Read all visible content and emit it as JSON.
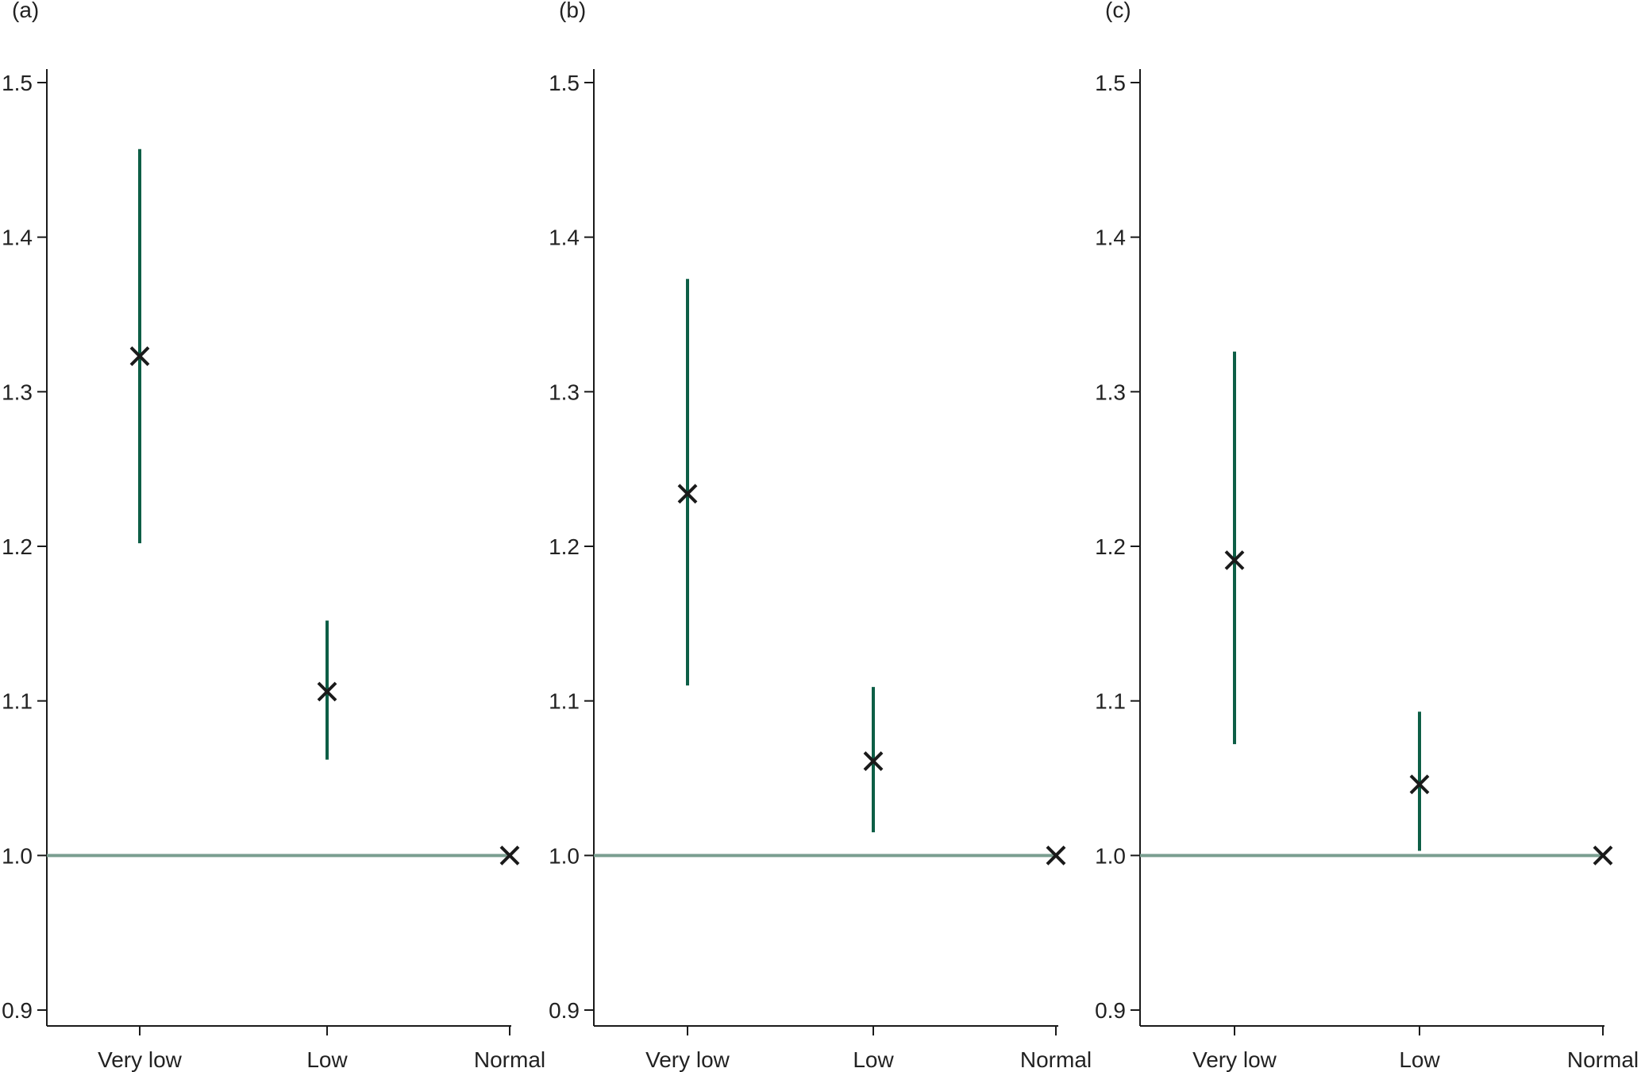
{
  "chart_data": [
    {
      "panel_label": "(a)",
      "type": "errorbar",
      "categories": [
        "Very low",
        "Low",
        "Normal"
      ],
      "estimates": [
        1.323,
        1.106,
        1.0
      ],
      "ci_lower": [
        1.202,
        1.062,
        null
      ],
      "ci_upper": [
        1.457,
        1.152,
        null
      ],
      "y_ticks": [
        "0.9",
        "1.0",
        "1.1",
        "1.2",
        "1.3",
        "1.4",
        "1.5"
      ],
      "ylim": [
        0.9,
        1.5
      ],
      "reference_line": 1.0
    },
    {
      "panel_label": "(b)",
      "type": "errorbar",
      "categories": [
        "Very low",
        "Low",
        "Normal"
      ],
      "estimates": [
        1.234,
        1.061,
        1.0
      ],
      "ci_lower": [
        1.11,
        1.015,
        null
      ],
      "ci_upper": [
        1.373,
        1.109,
        null
      ],
      "y_ticks": [
        "0.9",
        "1.0",
        "1.1",
        "1.2",
        "1.3",
        "1.4",
        "1.5"
      ],
      "ylim": [
        0.9,
        1.5
      ],
      "reference_line": 1.0
    },
    {
      "panel_label": "(c)",
      "type": "errorbar",
      "categories": [
        "Very low",
        "Low",
        "Normal"
      ],
      "estimates": [
        1.191,
        1.046,
        1.0
      ],
      "ci_lower": [
        1.072,
        1.003,
        null
      ],
      "ci_upper": [
        1.326,
        1.093,
        null
      ],
      "y_ticks": [
        "0.9",
        "1.0",
        "1.1",
        "1.2",
        "1.3",
        "1.4",
        "1.5"
      ],
      "ylim": [
        0.9,
        1.5
      ],
      "reference_line": 1.0
    }
  ],
  "colors": {
    "ci_line": "#0d5e46",
    "reference_line": "#7a9e90",
    "marker": "#1a1a1a",
    "axis": "#1a1a1a",
    "text": "#222222"
  }
}
